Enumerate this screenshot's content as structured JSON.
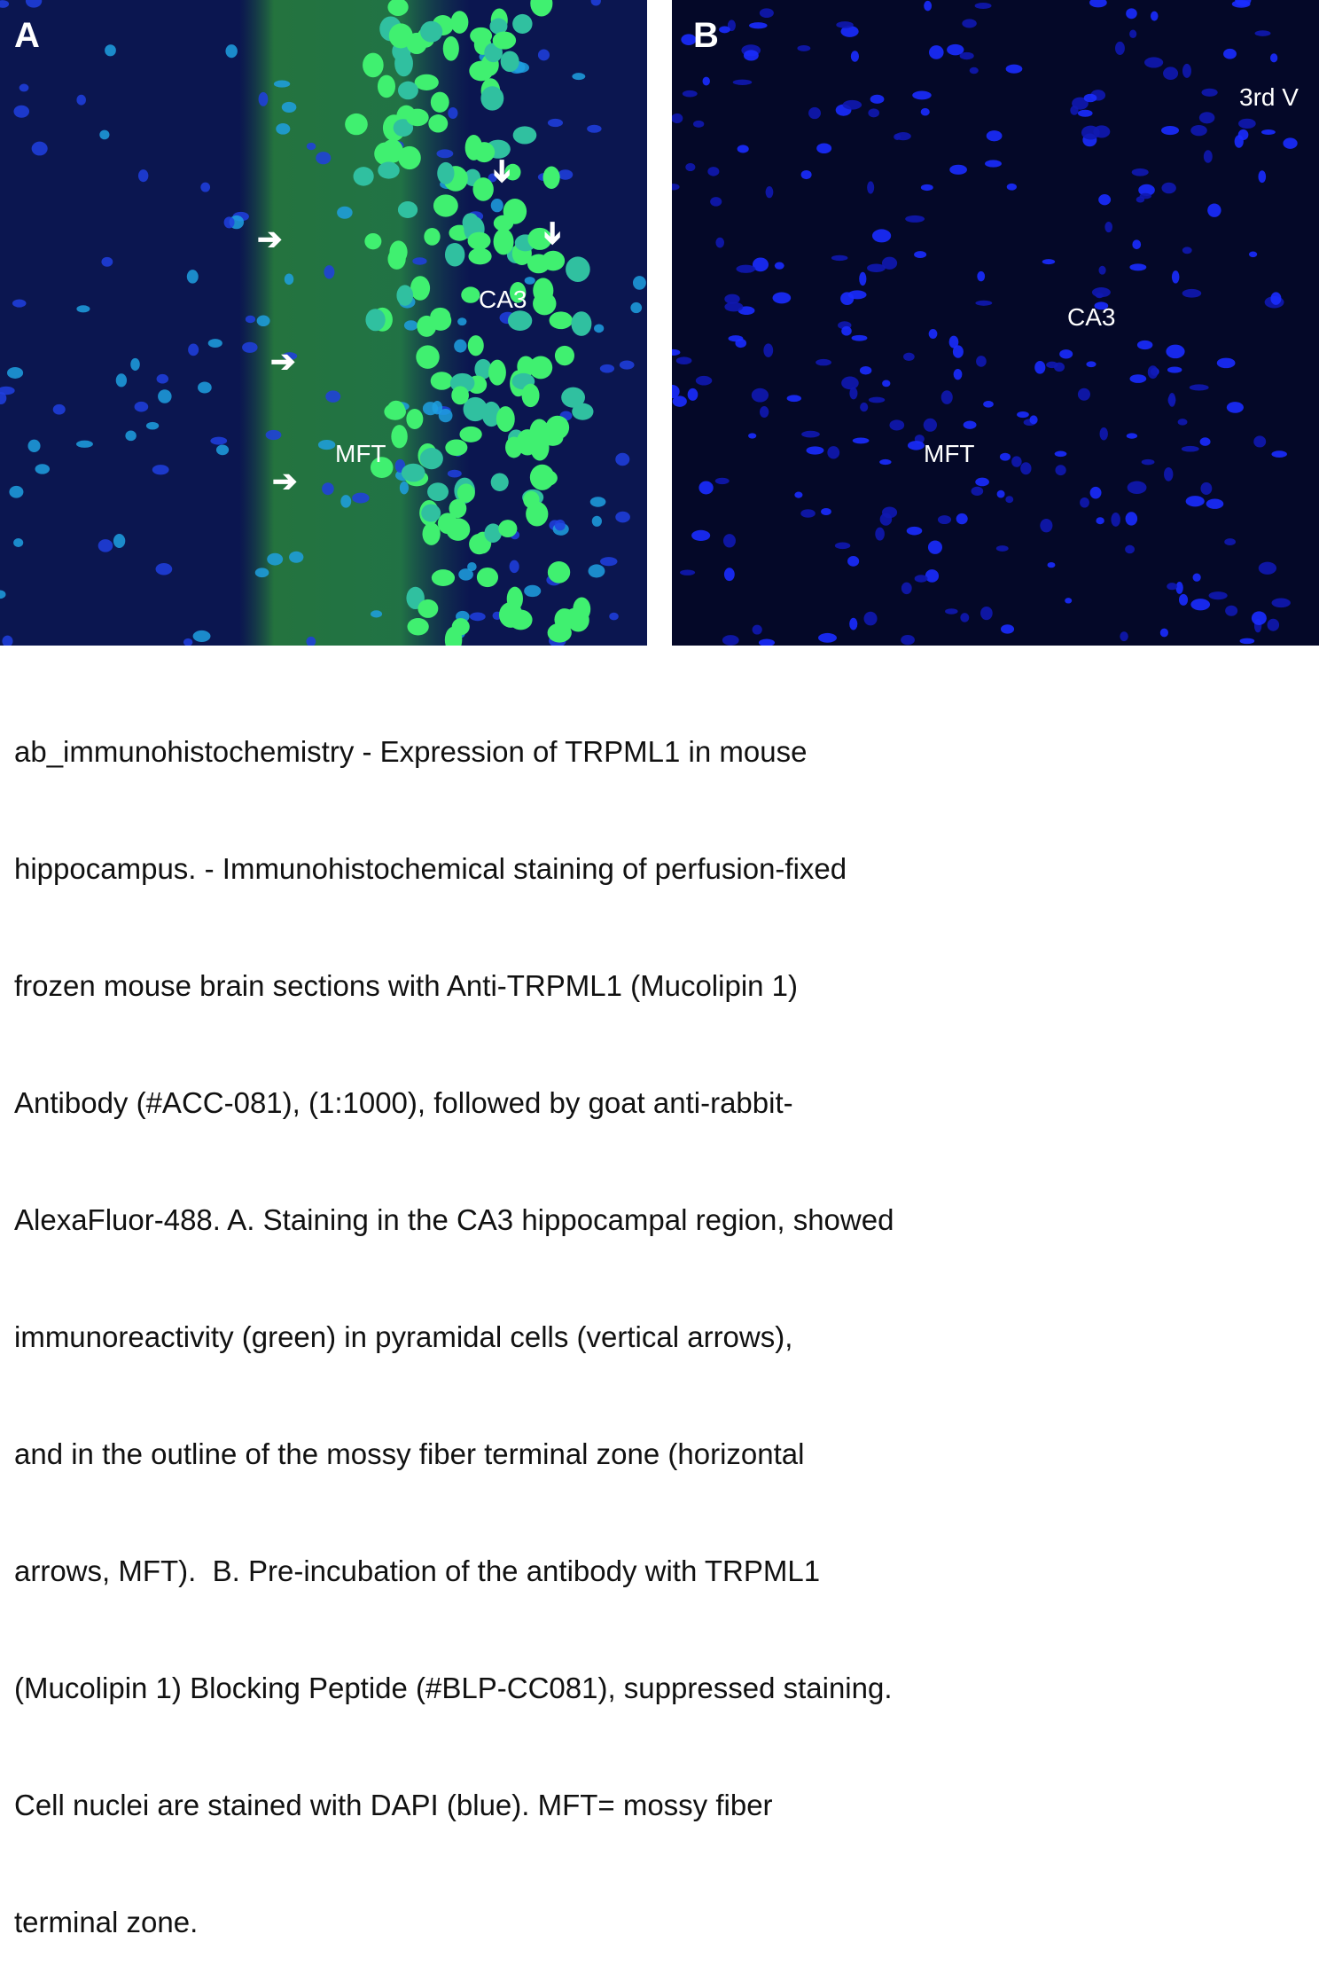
{
  "panels": {
    "a": {
      "label": "A",
      "regions": {
        "ca3": "CA3",
        "mft": "MFT"
      }
    },
    "b": {
      "label": "B",
      "regions": {
        "third_ventricle": "3rd V",
        "ca3": "CA3",
        "mft": "MFT"
      }
    }
  },
  "colors": {
    "nuclei_dapi": "#2a3cff",
    "trpml1_stain": "#3cff6a",
    "background": "#0b1650"
  },
  "caption": {
    "lines": [
      "ab_immunohistochemistry - Expression of TRPML1 in mouse",
      "hippocampus. - Immunohistochemical staining of perfusion-fixed",
      "frozen mouse brain sections with Anti-TRPML1 (Mucolipin 1)",
      "Antibody (#ACC-081), (1:1000), followed by goat anti-rabbit-",
      "AlexaFluor-488. A. Staining in the CA3 hippocampal region, showed",
      "immunoreactivity (green) in pyramidal cells (vertical arrows),",
      "and in the outline of the mossy fiber terminal zone (horizontal",
      "arrows, MFT).  B. Pre-incubation of the antibody with TRPML1",
      "(Mucolipin 1) Blocking Peptide (#BLP-CC081), suppressed staining.",
      "Cell nuclei are stained with DAPI (blue). MFT= mossy fiber",
      "terminal zone."
    ]
  }
}
